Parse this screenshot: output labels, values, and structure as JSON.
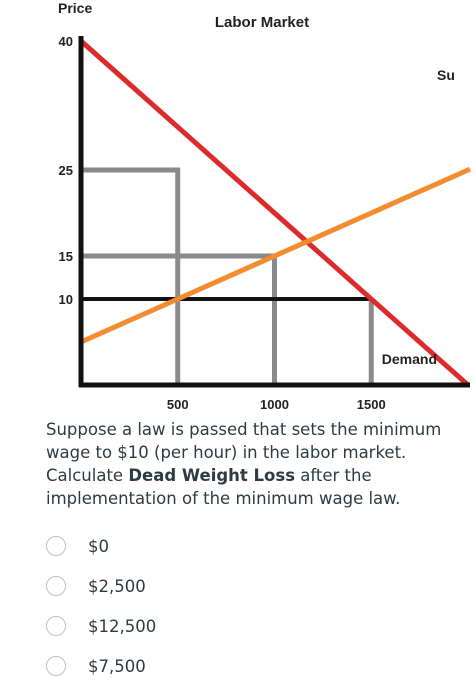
{
  "chart_data": {
    "type": "line",
    "title": "Labor Market",
    "ylabel": "Price",
    "xlabel": "",
    "y_ticks": [
      40,
      25,
      15,
      10
    ],
    "x_ticks": [
      500,
      1000,
      1500
    ],
    "series": [
      {
        "name": "Demand",
        "points": [
          [
            0,
            40
          ],
          [
            2000,
            0
          ]
        ],
        "color": "#dd2b2b"
      },
      {
        "name": "Supply",
        "points": [
          [
            0,
            5
          ],
          [
            2500,
            30
          ]
        ],
        "color": "#f28c2e",
        "label_visible": "Su"
      }
    ],
    "guide_lines": [
      {
        "points": [
          [
            0,
            25
          ],
          [
            500,
            25
          ],
          [
            500,
            0
          ]
        ],
        "color": "#8a8a8a"
      },
      {
        "points": [
          [
            0,
            15
          ],
          [
            1000,
            15
          ],
          [
            1000,
            0
          ]
        ],
        "color": "#8a8a8a"
      },
      {
        "points": [
          [
            0,
            10
          ],
          [
            1500,
            10
          ]
        ],
        "color": "#111111"
      },
      {
        "points": [
          [
            1500,
            10
          ],
          [
            1500,
            0
          ]
        ],
        "color": "#8a8a8a"
      }
    ]
  },
  "question": {
    "text_before": "Suppose a law is passed that sets the minimum wage to $10 (per hour) in the labor market. Calculate ",
    "bold": "Dead Weight Loss",
    "text_after": " after the implementation of the minimum wage law."
  },
  "options": [
    "$0",
    "$2,500",
    "$12,500",
    "$7,500"
  ]
}
